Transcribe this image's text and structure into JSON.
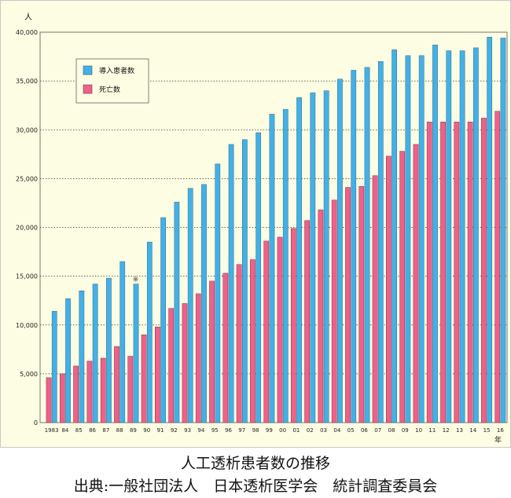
{
  "chart_data": {
    "type": "bar",
    "title": "人工透析患者数の推移",
    "source": "出典:一般社団法人　日本透析医学会　統計調査委員会",
    "ylabel": "人",
    "xlabel": "年",
    "ylim": [
      0,
      40000
    ],
    "yticks": [
      "0",
      "5,000",
      "10,000",
      "15,000",
      "20,000",
      "25,000",
      "30,000",
      "35,000",
      "40,000"
    ],
    "grid": true,
    "legend_position": "top-left",
    "annotation": "※",
    "annotation_category": "89",
    "categories": [
      "1983",
      "84",
      "85",
      "86",
      "87",
      "88",
      "89",
      "90",
      "91",
      "92",
      "93",
      "94",
      "95",
      "96",
      "97",
      "98",
      "99",
      "00",
      "01",
      "02",
      "03",
      "04",
      "05",
      "06",
      "07",
      "08",
      "09",
      "10",
      "11",
      "12",
      "13",
      "14",
      "15",
      "16"
    ],
    "series": [
      {
        "name": "導入患者数",
        "color": "#43b0e6",
        "values": [
          11400,
          12700,
          13500,
          14200,
          14800,
          16500,
          14200,
          18500,
          21000,
          22600,
          24000,
          24400,
          26500,
          28500,
          29000,
          29700,
          31600,
          32100,
          33300,
          33800,
          34000,
          35200,
          36100,
          36400,
          37000,
          38200,
          37600,
          37600,
          38700,
          38100,
          38100,
          38400,
          39500,
          39400
        ]
      },
      {
        "name": "死亡数",
        "color": "#ee6189",
        "values": [
          4600,
          5000,
          5800,
          6300,
          6600,
          7800,
          6800,
          9000,
          9800,
          11700,
          12200,
          13200,
          14500,
          15300,
          16200,
          16700,
          18600,
          19000,
          19900,
          20700,
          21800,
          22800,
          24100,
          24200,
          25300,
          27300,
          27800,
          28500,
          30800,
          30800,
          30800,
          30800,
          31200,
          31900
        ]
      }
    ]
  }
}
